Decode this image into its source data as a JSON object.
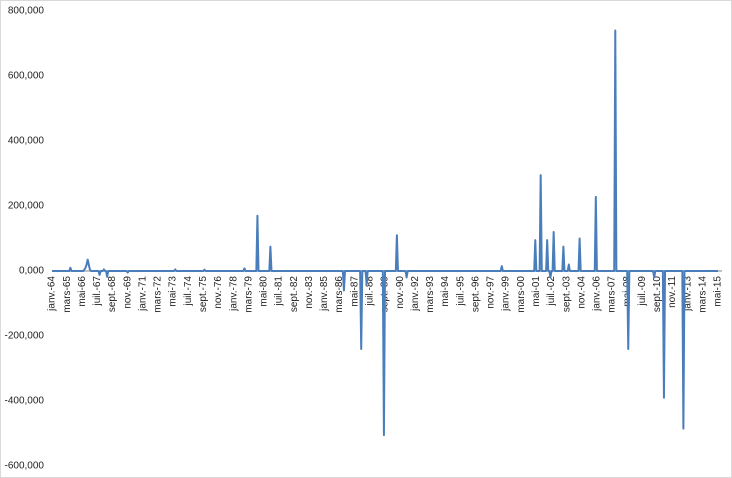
{
  "chart_data": {
    "type": "line",
    "color": "#4a7ebb",
    "ylim": [
      -600000,
      800000
    ],
    "yticks": [
      {
        "value": -600000,
        "label": "-600,000"
      },
      {
        "value": -400000,
        "label": "-400,000"
      },
      {
        "value": -200000,
        "label": "-200,000"
      },
      {
        "value": 0,
        "label": "0,000"
      },
      {
        "value": 200000,
        "label": "200,000"
      },
      {
        "value": 400000,
        "label": "400,000"
      },
      {
        "value": 600000,
        "label": "600,000"
      },
      {
        "value": 800000,
        "label": "800,000"
      }
    ],
    "categories": [
      "janv.-64",
      null,
      null,
      null,
      null,
      null,
      null,
      null,
      null,
      null,
      null,
      null,
      null,
      null,
      "mars-65",
      null,
      null,
      null,
      null,
      null,
      null,
      null,
      null,
      null,
      null,
      null,
      null,
      null,
      "mai-66",
      null,
      null,
      null,
      null,
      null,
      null,
      null,
      null,
      null,
      null,
      null,
      null,
      null,
      "juil.-67",
      null,
      null,
      null,
      null,
      null,
      null,
      null,
      null,
      null,
      null,
      null,
      null,
      null,
      "sept.-68",
      null,
      null,
      null,
      null,
      null,
      null,
      null,
      null,
      null,
      null,
      null,
      null,
      null,
      "nov.-69",
      null,
      null,
      null,
      null,
      null,
      null,
      null,
      null,
      null,
      null,
      null,
      null,
      null,
      "janv.-71",
      null,
      null,
      null,
      null,
      null,
      null,
      null,
      null,
      null,
      null,
      null,
      null,
      null,
      "mars-72",
      null,
      null,
      null,
      null,
      null,
      null,
      null,
      null,
      null,
      null,
      null,
      null,
      null,
      "mai-73",
      null,
      null,
      null,
      null,
      null,
      null,
      null,
      null,
      null,
      null,
      null,
      null,
      null,
      "juil.-74",
      null,
      null,
      null,
      null,
      null,
      null,
      null,
      null,
      null,
      null,
      null,
      null,
      null,
      "sept.-75",
      null,
      null,
      null,
      null,
      null,
      null,
      null,
      null,
      null,
      null,
      null,
      null,
      null,
      "nov.-76",
      null,
      null,
      null,
      null,
      null,
      null,
      null,
      null,
      null,
      null,
      null,
      null,
      null,
      "janv.-78",
      null,
      null,
      null,
      null,
      null,
      null,
      null,
      null,
      null,
      null,
      null,
      null,
      null,
      "mars-79",
      null,
      null,
      null,
      null,
      null,
      null,
      null,
      null,
      null,
      null,
      null,
      null,
      null,
      "mai-80",
      null,
      null,
      null,
      null,
      null,
      null,
      null,
      null,
      null,
      null,
      null,
      null,
      null,
      "juil.-81",
      null,
      null,
      null,
      null,
      null,
      null,
      null,
      null,
      null,
      null,
      null,
      null,
      null,
      "sept.-82",
      null,
      null,
      null,
      null,
      null,
      null,
      null,
      null,
      null,
      null,
      null,
      null,
      null,
      "nov.-83",
      null,
      null,
      null,
      null,
      null,
      null,
      null,
      null,
      null,
      null,
      null,
      null,
      null,
      "janv.-85",
      null,
      null,
      null,
      null,
      null,
      null,
      null,
      null,
      null,
      null,
      null,
      null,
      null,
      "mars-86",
      null,
      null,
      null,
      null,
      null,
      null,
      null,
      null,
      null,
      null,
      null,
      null,
      null,
      "mai-87",
      null,
      null,
      null,
      null,
      null,
      null,
      null,
      null,
      null,
      null,
      null,
      null,
      null,
      "juil.-88",
      null,
      null,
      null,
      null,
      null,
      null,
      null,
      null,
      null,
      null,
      null,
      null,
      null,
      "sept.-89",
      null,
      null,
      null,
      null,
      null,
      null,
      null,
      null,
      null,
      null,
      null,
      null,
      null,
      "nov.-90",
      null,
      null,
      null,
      null,
      null,
      null,
      null,
      null,
      null,
      null,
      null,
      null,
      null,
      "janv.-92",
      null,
      null,
      null,
      null,
      null,
      null,
      null,
      null,
      null,
      null,
      null,
      null,
      null,
      "mars-93",
      null,
      null,
      null,
      null,
      null,
      null,
      null,
      null,
      null,
      null,
      null,
      null,
      null,
      "mai-94",
      null,
      null,
      null,
      null,
      null,
      null,
      null,
      null,
      null,
      null,
      null,
      null,
      null,
      "juil.-95",
      null,
      null,
      null,
      null,
      null,
      null,
      null,
      null,
      null,
      null,
      null,
      null,
      null,
      "sept.-96",
      null,
      null,
      null,
      null,
      null,
      null,
      null,
      null,
      null,
      null,
      null,
      null,
      null,
      "nov.-97",
      null,
      null,
      null,
      null,
      null,
      null,
      null,
      null,
      null,
      null,
      null,
      null,
      null,
      "janv.-99",
      null,
      null,
      null,
      null,
      null,
      null,
      null,
      null,
      null,
      null,
      null,
      null,
      null,
      "mars-00",
      null,
      null,
      null,
      null,
      null,
      null,
      null,
      null,
      null,
      null,
      null,
      null,
      null,
      "mai-01",
      null,
      null,
      null,
      null,
      null,
      null,
      null,
      null,
      null,
      null,
      null,
      null,
      null,
      "juil.-02",
      null,
      null,
      null,
      null,
      null,
      null,
      null,
      null,
      null,
      null,
      null,
      null,
      null,
      "sept.-03",
      null,
      null,
      null,
      null,
      null,
      null,
      null,
      null,
      null,
      null,
      null,
      null,
      null,
      "nov.-04",
      null,
      null,
      null,
      null,
      null,
      null,
      null,
      null,
      null,
      null,
      null,
      null,
      null,
      "janv.-06",
      null,
      null,
      null,
      null,
      null,
      null,
      null,
      null,
      null,
      null,
      null,
      null,
      null,
      "mars-07",
      null,
      null,
      null,
      null,
      null,
      null,
      null,
      null,
      null,
      null,
      null,
      null,
      null,
      "mai-08",
      null,
      null,
      null,
      null,
      null,
      null,
      null,
      null,
      null,
      null,
      null,
      null,
      null,
      "juil.-09",
      null,
      null,
      null,
      null,
      null,
      null,
      null,
      null,
      null,
      null,
      null,
      null,
      null,
      "sept.-10",
      null,
      null,
      null,
      null,
      null,
      null,
      null,
      null,
      null,
      null,
      null,
      null,
      null,
      "nov.-11",
      null,
      null,
      null,
      null,
      null,
      null,
      null,
      null,
      null,
      null,
      null,
      null,
      null,
      "janv.-13",
      null,
      null,
      null,
      null,
      null,
      null,
      null,
      null,
      null,
      null,
      null,
      null,
      null,
      "mars-14",
      null,
      null,
      null,
      null,
      null,
      null,
      null,
      null,
      null,
      null,
      null,
      null,
      null,
      "mai-15"
    ],
    "values": [
      0,
      0,
      0,
      0,
      0,
      0,
      0,
      0,
      0,
      0,
      0,
      0,
      0,
      0,
      0,
      0,
      0,
      10000,
      0,
      0,
      0,
      0,
      0,
      0,
      0,
      0,
      0,
      0,
      0,
      0,
      5000,
      10000,
      20000,
      35000,
      20000,
      5000,
      0,
      0,
      0,
      0,
      0,
      0,
      0,
      0,
      -12000,
      0,
      0,
      0,
      5000,
      0,
      0,
      -18000,
      0,
      0,
      0,
      0,
      0,
      0,
      0,
      0,
      0,
      0,
      0,
      0,
      0,
      0,
      0,
      0,
      0,
      0,
      -5000,
      0,
      0,
      0,
      0,
      0,
      0,
      0,
      0,
      0,
      0,
      0,
      0,
      0,
      0,
      0,
      0,
      0,
      0,
      0,
      0,
      0,
      0,
      0,
      0,
      0,
      0,
      0,
      0,
      0,
      0,
      0,
      0,
      0,
      0,
      0,
      0,
      0,
      0,
      0,
      0,
      0,
      0,
      0,
      5000,
      0,
      0,
      0,
      0,
      0,
      0,
      0,
      0,
      0,
      0,
      0,
      0,
      0,
      0,
      0,
      0,
      0,
      0,
      0,
      0,
      0,
      0,
      0,
      0,
      0,
      0,
      4000,
      0,
      0,
      0,
      0,
      0,
      0,
      0,
      0,
      0,
      0,
      0,
      0,
      0,
      0,
      0,
      0,
      0,
      0,
      0,
      0,
      0,
      0,
      0,
      0,
      0,
      0,
      0,
      0,
      0,
      0,
      0,
      0,
      0,
      0,
      0,
      0,
      8000,
      0,
      0,
      0,
      0,
      0,
      0,
      0,
      0,
      0,
      0,
      0,
      170000,
      0,
      0,
      0,
      0,
      0,
      0,
      0,
      0,
      0,
      0,
      0,
      75000,
      0,
      0,
      0,
      0,
      0,
      0,
      0,
      0,
      0,
      0,
      0,
      0,
      0,
      0,
      0,
      0,
      0,
      0,
      0,
      0,
      0,
      0,
      0,
      0,
      0,
      0,
      0,
      0,
      0,
      0,
      0,
      0,
      0,
      0,
      0,
      0,
      0,
      0,
      0,
      0,
      0,
      0,
      0,
      0,
      0,
      0,
      0,
      0,
      0,
      0,
      0,
      0,
      0,
      0,
      0,
      0,
      0,
      0,
      0,
      0,
      0,
      0,
      0,
      0,
      0,
      0,
      0,
      -60000,
      0,
      0,
      0,
      0,
      0,
      0,
      0,
      0,
      0,
      0,
      0,
      0,
      0,
      0,
      0,
      -240000,
      0,
      0,
      0,
      0,
      -40000,
      0,
      0,
      0,
      0,
      0,
      0,
      0,
      0,
      0,
      0,
      0,
      0,
      0,
      0,
      0,
      -505000,
      0,
      0,
      0,
      0,
      0,
      0,
      0,
      0,
      0,
      0,
      0,
      110000,
      0,
      0,
      0,
      0,
      0,
      0,
      0,
      0,
      -20000,
      0,
      0,
      0,
      0,
      0,
      0,
      0,
      0,
      0,
      0,
      0,
      0,
      0,
      0,
      0,
      0,
      0,
      0,
      0,
      0,
      0,
      0,
      0,
      0,
      0,
      0,
      0,
      0,
      0,
      0,
      0,
      0,
      0,
      0,
      0,
      0,
      0,
      0,
      0,
      0,
      0,
      0,
      0,
      0,
      0,
      0,
      0,
      0,
      0,
      0,
      0,
      0,
      0,
      0,
      0,
      0,
      0,
      0,
      0,
      0,
      0,
      0,
      0,
      0,
      0,
      0,
      0,
      0,
      0,
      0,
      0,
      0,
      0,
      0,
      0,
      0,
      0,
      0,
      0,
      0,
      0,
      0,
      0,
      0,
      0,
      0,
      0,
      15000,
      0,
      0,
      0,
      0,
      0,
      0,
      0,
      0,
      0,
      0,
      0,
      0,
      0,
      0,
      0,
      0,
      0,
      0,
      0,
      0,
      0,
      0,
      0,
      0,
      0,
      0,
      0,
      0,
      0,
      0,
      95000,
      0,
      0,
      0,
      0,
      295000,
      0,
      0,
      0,
      0,
      0,
      95000,
      0,
      0,
      -20000,
      0,
      0,
      120000,
      0,
      0,
      0,
      0,
      0,
      0,
      0,
      0,
      75000,
      0,
      0,
      0,
      0,
      20000,
      0,
      0,
      0,
      0,
      0,
      0,
      0,
      0,
      0,
      100000,
      0,
      0,
      0,
      0,
      0,
      0,
      0,
      0,
      0,
      0,
      0,
      0,
      0,
      0,
      228000,
      0,
      0,
      0,
      0,
      0,
      0,
      0,
      0,
      0,
      0,
      0,
      0,
      0,
      0,
      0,
      0,
      0,
      740000,
      0,
      0,
      0,
      0,
      0,
      0,
      0,
      0,
      0,
      0,
      0,
      -240000,
      0,
      0,
      0,
      0,
      0,
      0,
      0,
      0,
      0,
      0,
      0,
      0,
      0,
      0,
      0,
      0,
      0,
      0,
      0,
      0,
      0,
      0,
      0,
      -20000,
      0,
      0,
      0,
      0,
      0,
      0,
      0,
      0,
      -390000,
      0,
      0,
      0,
      0,
      0,
      0,
      0,
      0,
      0,
      0,
      0,
      0,
      0,
      0,
      0,
      0,
      0,
      -485000,
      0,
      0,
      0,
      0,
      0,
      0,
      0,
      0,
      0,
      0,
      0,
      0,
      0,
      0,
      0,
      0,
      0,
      0,
      0,
      0,
      0,
      0,
      0,
      0,
      0,
      0,
      0,
      0,
      0,
      0,
      0,
      0
    ]
  }
}
